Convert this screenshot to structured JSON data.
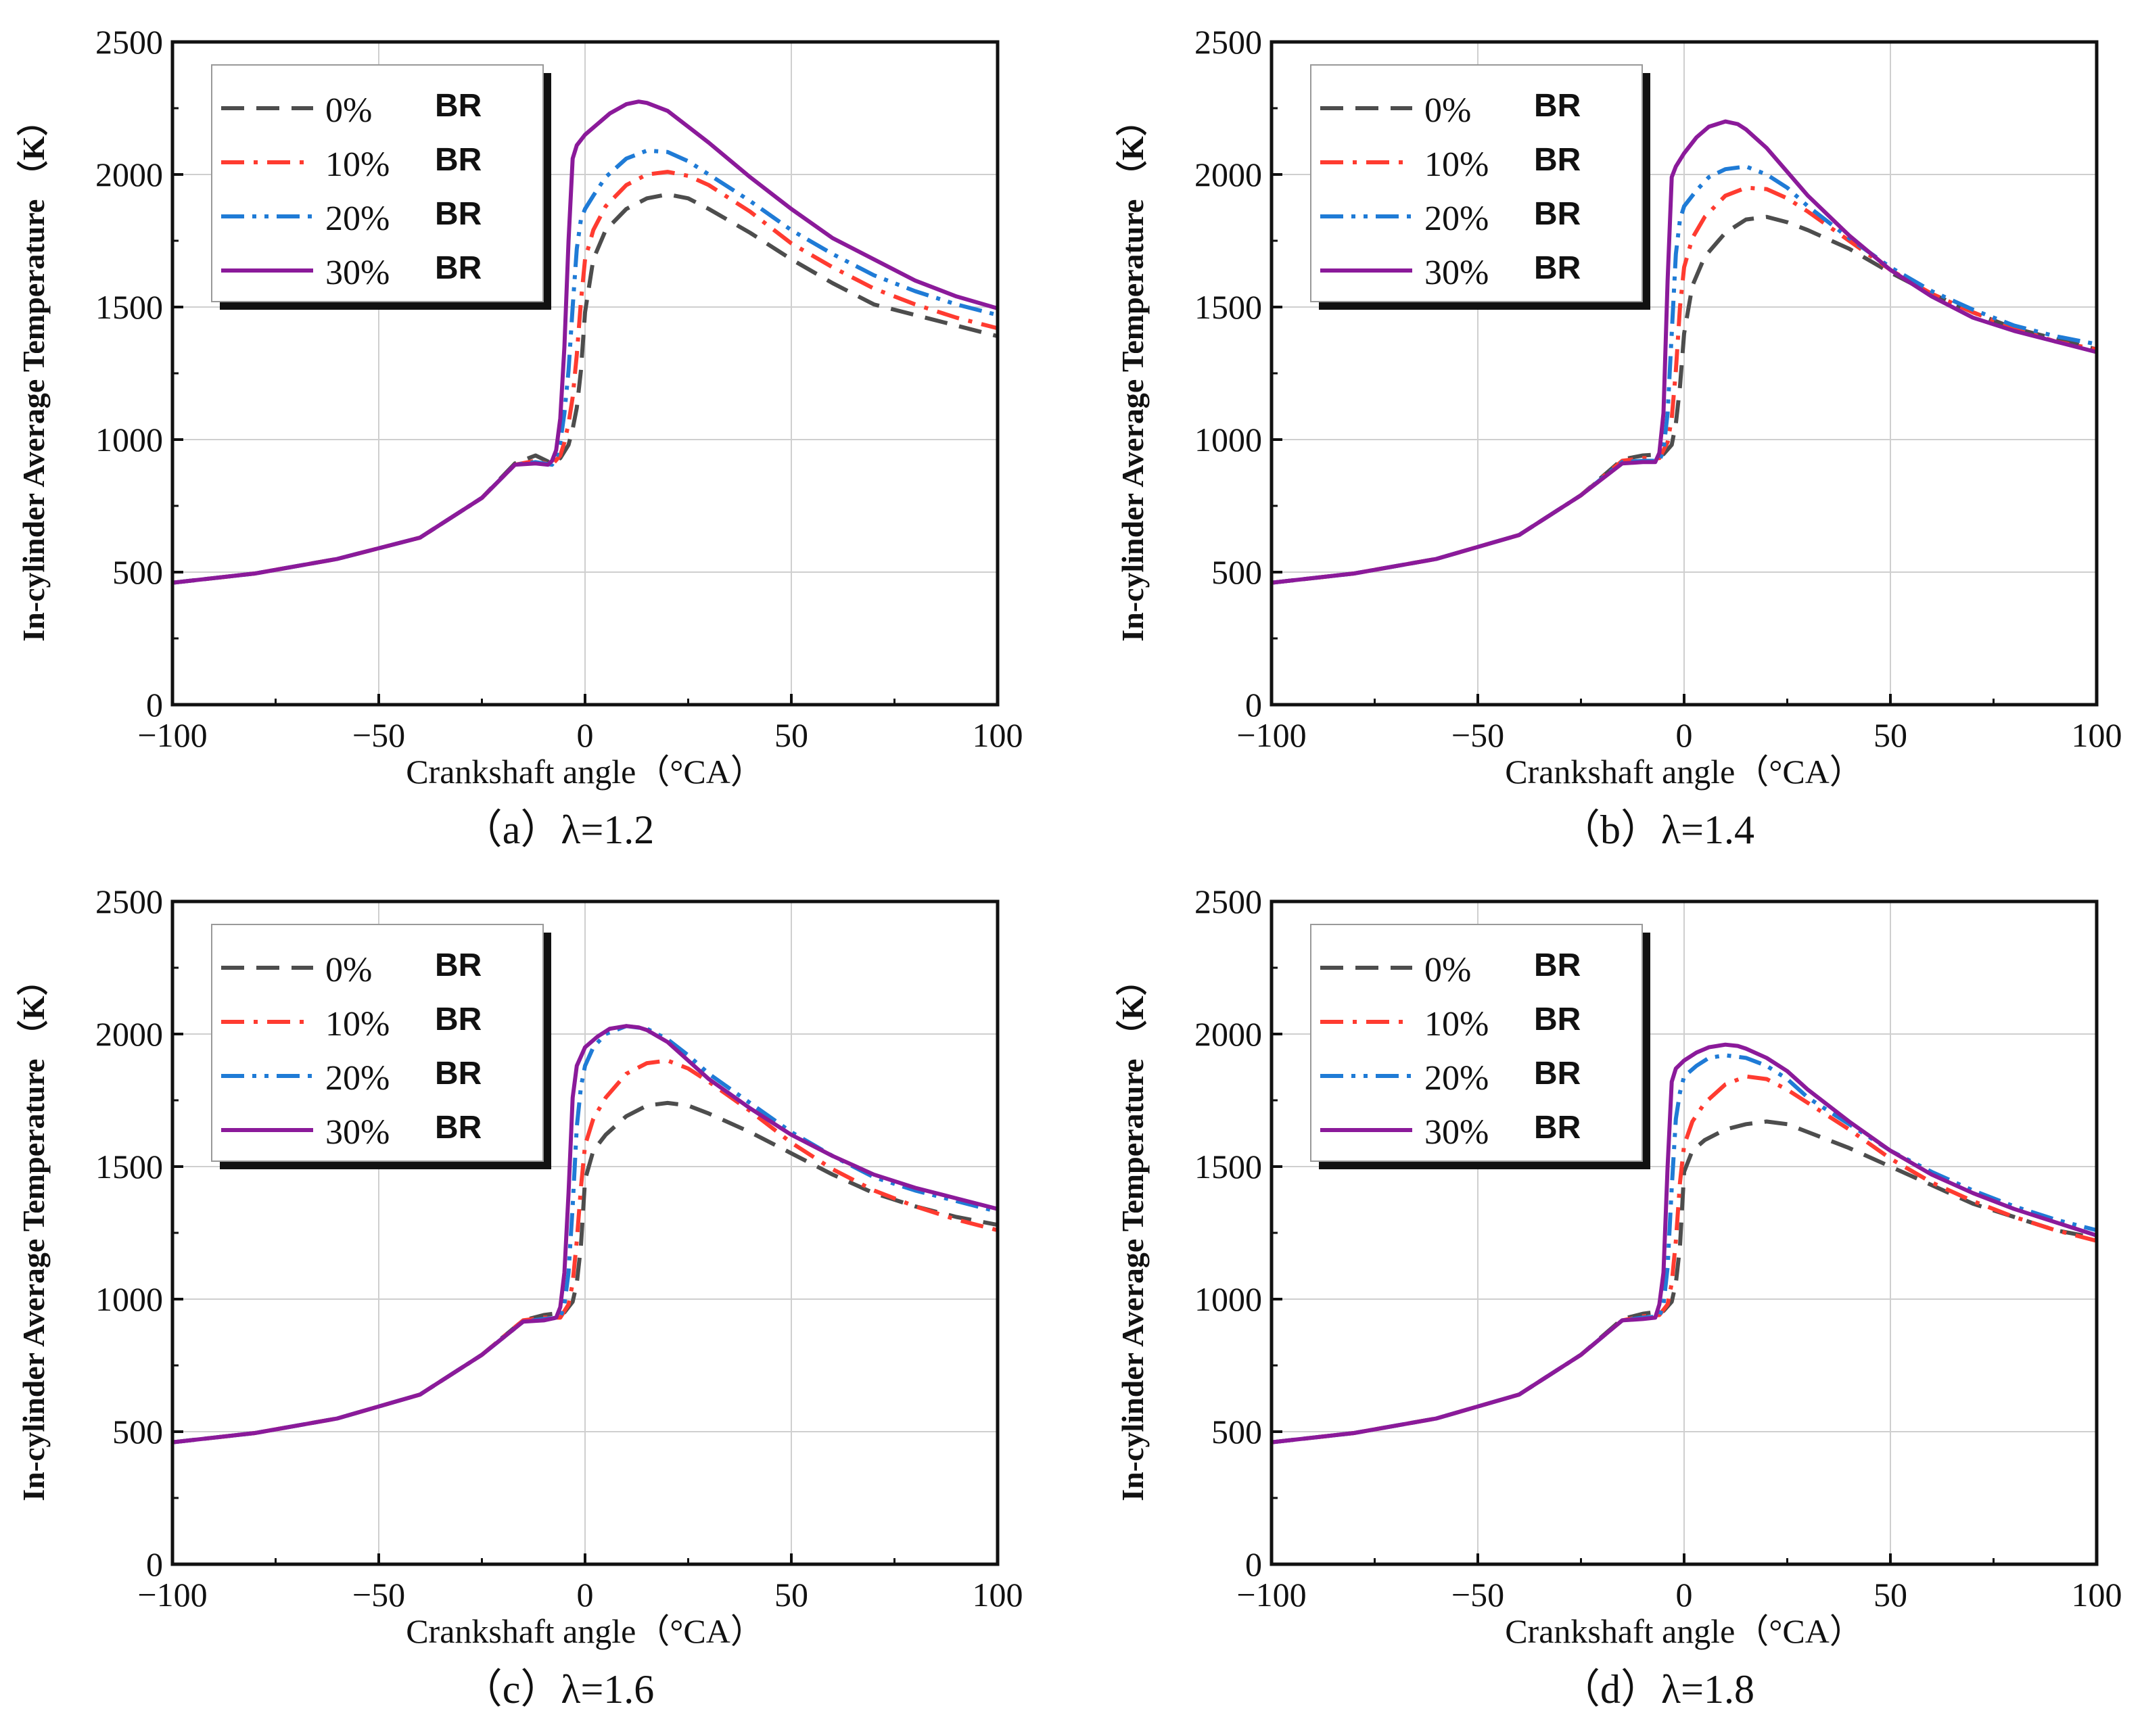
{
  "figure": {
    "legend_suffix": "BR"
  },
  "chart_data": [
    {
      "type": "line",
      "caption": "（a）λ=1.2",
      "xlabel": "Crankshaft angle（°CA）",
      "ylabel": "In-cylinder Average  Temperature （K）",
      "xlim": [
        -100,
        100
      ],
      "ylim": [
        0,
        2500
      ],
      "xticks": [
        -100,
        -50,
        0,
        50,
        100
      ],
      "yticks": [
        0,
        500,
        1000,
        1500,
        2000,
        2500
      ],
      "grid": true,
      "legend_position": "top-left",
      "series": [
        {
          "name": "0%",
          "color": "#4d4d4d",
          "style": "dash",
          "x": [
            -100,
            -80,
            -60,
            -40,
            -25,
            -17,
            -12,
            -8,
            -6,
            -4,
            -3,
            -2,
            -1,
            0,
            2,
            5,
            10,
            15,
            20,
            25,
            30,
            40,
            50,
            60,
            70,
            80,
            90,
            100
          ],
          "y": [
            460,
            495,
            550,
            630,
            780,
            910,
            940,
            910,
            930,
            980,
            1040,
            1120,
            1260,
            1480,
            1680,
            1790,
            1870,
            1910,
            1925,
            1910,
            1870,
            1780,
            1680,
            1590,
            1510,
            1470,
            1430,
            1390
          ]
        },
        {
          "name": "10%",
          "color": "#ff3b30",
          "style": "dashdot",
          "x": [
            -100,
            -80,
            -60,
            -40,
            -25,
            -17,
            -12,
            -8,
            -6,
            -5,
            -4,
            -3,
            -2,
            -1,
            0,
            2,
            5,
            10,
            15,
            20,
            25,
            30,
            40,
            50,
            60,
            70,
            80,
            90,
            100
          ],
          "y": [
            460,
            495,
            550,
            630,
            780,
            905,
            920,
            905,
            940,
            990,
            1060,
            1160,
            1320,
            1520,
            1680,
            1790,
            1880,
            1960,
            2000,
            2010,
            1995,
            1960,
            1860,
            1740,
            1650,
            1570,
            1510,
            1460,
            1420
          ]
        },
        {
          "name": "20%",
          "color": "#1f7bd6",
          "style": "dashdotdot",
          "x": [
            -100,
            -80,
            -60,
            -40,
            -25,
            -17,
            -12,
            -8,
            -7,
            -6,
            -5,
            -4,
            -3,
            -2,
            -1,
            0,
            2,
            5,
            10,
            15,
            20,
            25,
            30,
            40,
            50,
            60,
            70,
            80,
            90,
            100
          ],
          "y": [
            460,
            495,
            550,
            630,
            780,
            905,
            915,
            905,
            930,
            990,
            1100,
            1260,
            1500,
            1720,
            1830,
            1870,
            1920,
            1990,
            2060,
            2090,
            2085,
            2050,
            2000,
            1900,
            1790,
            1700,
            1620,
            1560,
            1510,
            1470
          ]
        },
        {
          "name": "30%",
          "color": "#8b1a9a",
          "style": "solid",
          "x": [
            -100,
            -80,
            -60,
            -40,
            -25,
            -17,
            -12,
            -9,
            -8,
            -7,
            -6,
            -5,
            -4,
            -3,
            -2,
            0,
            3,
            6,
            10,
            13,
            15,
            20,
            25,
            30,
            40,
            50,
            60,
            70,
            80,
            90,
            100
          ],
          "y": [
            460,
            495,
            550,
            630,
            780,
            905,
            910,
            905,
            920,
            960,
            1080,
            1350,
            1750,
            2060,
            2110,
            2150,
            2190,
            2230,
            2265,
            2275,
            2270,
            2240,
            2180,
            2120,
            1990,
            1870,
            1760,
            1680,
            1600,
            1540,
            1495
          ]
        }
      ]
    },
    {
      "type": "line",
      "caption": "（b）λ=1.4",
      "xlabel": "Crankshaft angle（°CA）",
      "ylabel": "In-cylinder Average  Temperature （K）",
      "xlim": [
        -100,
        100
      ],
      "ylim": [
        0,
        2500
      ],
      "xticks": [
        -100,
        -50,
        0,
        50,
        100
      ],
      "yticks": [
        0,
        500,
        1000,
        1500,
        2000,
        2500
      ],
      "grid": true,
      "legend_position": "top-left",
      "series": [
        {
          "name": "0%",
          "color": "#4d4d4d",
          "style": "dash",
          "x": [
            -100,
            -80,
            -60,
            -40,
            -25,
            -15,
            -10,
            -5,
            -3,
            -2,
            -1,
            0,
            2,
            5,
            10,
            15,
            20,
            25,
            30,
            40,
            50,
            60,
            70,
            80,
            90,
            100
          ],
          "y": [
            460,
            495,
            550,
            640,
            790,
            925,
            940,
            945,
            980,
            1060,
            1200,
            1400,
            1580,
            1690,
            1780,
            1830,
            1840,
            1820,
            1790,
            1720,
            1630,
            1550,
            1480,
            1420,
            1380,
            1340
          ]
        },
        {
          "name": "10%",
          "color": "#ff3b30",
          "style": "dashdot",
          "x": [
            -100,
            -80,
            -60,
            -40,
            -25,
            -15,
            -10,
            -6,
            -4,
            -3,
            -2,
            -1,
            0,
            2,
            5,
            10,
            15,
            20,
            25,
            30,
            40,
            50,
            60,
            70,
            80,
            90,
            100
          ],
          "y": [
            460,
            495,
            550,
            640,
            790,
            920,
            930,
            930,
            990,
            1080,
            1260,
            1500,
            1650,
            1760,
            1840,
            1920,
            1950,
            1945,
            1910,
            1860,
            1750,
            1640,
            1550,
            1480,
            1420,
            1370,
            1340
          ]
        },
        {
          "name": "20%",
          "color": "#1f7bd6",
          "style": "dashdotdot",
          "x": [
            -100,
            -80,
            -60,
            -40,
            -25,
            -15,
            -10,
            -6,
            -5,
            -4,
            -3,
            -2,
            -1,
            0,
            3,
            6,
            10,
            15,
            20,
            25,
            30,
            40,
            50,
            60,
            70,
            80,
            90,
            100
          ],
          "y": [
            460,
            495,
            550,
            640,
            790,
            915,
            920,
            920,
            960,
            1100,
            1400,
            1700,
            1830,
            1880,
            1940,
            1990,
            2020,
            2030,
            2000,
            1950,
            1880,
            1760,
            1650,
            1560,
            1490,
            1430,
            1390,
            1360
          ]
        },
        {
          "name": "30%",
          "color": "#8b1a9a",
          "style": "solid",
          "x": [
            -100,
            -80,
            -60,
            -40,
            -25,
            -15,
            -10,
            -7,
            -6,
            -5,
            -4,
            -3,
            -2,
            0,
            3,
            6,
            10,
            13,
            15,
            20,
            25,
            30,
            40,
            50,
            60,
            70,
            80,
            90,
            100
          ],
          "y": [
            460,
            495,
            550,
            640,
            790,
            910,
            915,
            915,
            950,
            1100,
            1600,
            1990,
            2030,
            2080,
            2140,
            2180,
            2200,
            2190,
            2170,
            2100,
            2010,
            1920,
            1770,
            1640,
            1540,
            1460,
            1410,
            1370,
            1330
          ]
        }
      ]
    },
    {
      "type": "line",
      "caption": "（c）λ=1.6",
      "xlabel": "Crankshaft angle（°CA）",
      "ylabel": "In-cylinder Average  Temperature （K）",
      "xlim": [
        -100,
        100
      ],
      "ylim": [
        0,
        2500
      ],
      "xticks": [
        -100,
        -50,
        0,
        50,
        100
      ],
      "yticks": [
        0,
        500,
        1000,
        1500,
        2000,
        2500
      ],
      "grid": true,
      "legend_position": "top-left",
      "series": [
        {
          "name": "0%",
          "color": "#4d4d4d",
          "style": "dash",
          "x": [
            -100,
            -80,
            -60,
            -40,
            -25,
            -15,
            -10,
            -5,
            -3,
            -2,
            -1,
            0,
            2,
            5,
            10,
            15,
            20,
            25,
            30,
            40,
            50,
            60,
            70,
            80,
            90,
            100
          ],
          "y": [
            460,
            495,
            550,
            640,
            790,
            920,
            940,
            950,
            990,
            1060,
            1200,
            1450,
            1560,
            1620,
            1690,
            1730,
            1740,
            1730,
            1700,
            1630,
            1550,
            1470,
            1400,
            1350,
            1310,
            1280
          ]
        },
        {
          "name": "10%",
          "color": "#ff3b30",
          "style": "dashdot",
          "x": [
            -100,
            -80,
            -60,
            -40,
            -25,
            -15,
            -10,
            -6,
            -4,
            -3,
            -2,
            -1,
            0,
            2,
            5,
            10,
            15,
            20,
            25,
            30,
            40,
            50,
            60,
            70,
            80,
            90,
            100
          ],
          "y": [
            460,
            495,
            550,
            640,
            790,
            920,
            930,
            930,
            980,
            1060,
            1220,
            1420,
            1580,
            1680,
            1760,
            1850,
            1890,
            1900,
            1870,
            1820,
            1710,
            1590,
            1490,
            1410,
            1350,
            1300,
            1260
          ]
        },
        {
          "name": "20%",
          "color": "#1f7bd6",
          "style": "dashdotdot",
          "x": [
            -100,
            -80,
            -60,
            -40,
            -25,
            -15,
            -10,
            -6,
            -5,
            -4,
            -3,
            -2,
            -1,
            0,
            2,
            5,
            10,
            15,
            20,
            25,
            30,
            40,
            50,
            60,
            70,
            80,
            90,
            100
          ],
          "y": [
            460,
            495,
            550,
            640,
            790,
            915,
            925,
            930,
            980,
            1100,
            1350,
            1650,
            1800,
            1880,
            1950,
            2000,
            2030,
            2020,
            1980,
            1920,
            1850,
            1740,
            1630,
            1540,
            1460,
            1410,
            1370,
            1330
          ]
        },
        {
          "name": "30%",
          "color": "#8b1a9a",
          "style": "solid",
          "x": [
            -100,
            -80,
            -60,
            -40,
            -25,
            -15,
            -10,
            -7,
            -6,
            -5,
            -4,
            -3,
            -2,
            0,
            3,
            6,
            10,
            13,
            15,
            20,
            25,
            30,
            40,
            50,
            60,
            70,
            80,
            90,
            100
          ],
          "y": [
            460,
            495,
            550,
            640,
            790,
            915,
            920,
            930,
            970,
            1100,
            1400,
            1760,
            1880,
            1950,
            1990,
            2020,
            2030,
            2025,
            2015,
            1970,
            1900,
            1830,
            1720,
            1620,
            1540,
            1470,
            1420,
            1380,
            1340
          ]
        }
      ]
    },
    {
      "type": "line",
      "caption": "（d）λ=1.8",
      "xlabel": "Crankshaft angle（°CA）",
      "ylabel": "In-cylinder Average  Temperature （K）",
      "xlim": [
        -100,
        100
      ],
      "ylim": [
        0,
        2500
      ],
      "xticks": [
        -100,
        -50,
        0,
        50,
        100
      ],
      "yticks": [
        0,
        500,
        1000,
        1500,
        2000,
        2500
      ],
      "grid": true,
      "legend_position": "top-left",
      "series": [
        {
          "name": "0%",
          "color": "#4d4d4d",
          "style": "dash",
          "x": [
            -100,
            -80,
            -60,
            -40,
            -25,
            -15,
            -10,
            -5,
            -3,
            -2,
            -1,
            0,
            2,
            5,
            10,
            15,
            20,
            25,
            30,
            40,
            50,
            60,
            70,
            80,
            90,
            100
          ],
          "y": [
            460,
            495,
            550,
            640,
            790,
            925,
            945,
            955,
            990,
            1060,
            1200,
            1480,
            1560,
            1600,
            1640,
            1660,
            1670,
            1660,
            1630,
            1570,
            1500,
            1430,
            1360,
            1310,
            1260,
            1230
          ]
        },
        {
          "name": "10%",
          "color": "#ff3b30",
          "style": "dashdot",
          "x": [
            -100,
            -80,
            -60,
            -40,
            -25,
            -15,
            -10,
            -6,
            -4,
            -3,
            -2,
            -1,
            0,
            2,
            5,
            10,
            15,
            20,
            25,
            30,
            40,
            50,
            60,
            70,
            80,
            90,
            100
          ],
          "y": [
            460,
            495,
            550,
            640,
            790,
            920,
            935,
            940,
            980,
            1060,
            1220,
            1440,
            1580,
            1670,
            1740,
            1810,
            1840,
            1830,
            1790,
            1740,
            1640,
            1530,
            1440,
            1370,
            1310,
            1260,
            1220
          ]
        },
        {
          "name": "20%",
          "color": "#1f7bd6",
          "style": "dashdotdot",
          "x": [
            -100,
            -80,
            -60,
            -40,
            -25,
            -15,
            -10,
            -6,
            -5,
            -4,
            -3,
            -2,
            -1,
            0,
            3,
            6,
            10,
            15,
            20,
            25,
            30,
            40,
            50,
            60,
            70,
            80,
            90,
            100
          ],
          "y": [
            460,
            495,
            550,
            640,
            790,
            920,
            930,
            935,
            980,
            1120,
            1420,
            1680,
            1780,
            1840,
            1880,
            1910,
            1920,
            1910,
            1880,
            1830,
            1760,
            1660,
            1560,
            1480,
            1410,
            1350,
            1300,
            1260
          ]
        },
        {
          "name": "30%",
          "color": "#8b1a9a",
          "style": "solid",
          "x": [
            -100,
            -80,
            -60,
            -40,
            -25,
            -15,
            -10,
            -7,
            -6,
            -5,
            -4,
            -3,
            -2,
            0,
            3,
            6,
            10,
            13,
            15,
            20,
            25,
            30,
            40,
            50,
            60,
            70,
            80,
            90,
            100
          ],
          "y": [
            460,
            495,
            550,
            640,
            790,
            920,
            925,
            930,
            980,
            1100,
            1500,
            1820,
            1870,
            1900,
            1930,
            1950,
            1960,
            1955,
            1945,
            1910,
            1860,
            1790,
            1670,
            1560,
            1470,
            1400,
            1340,
            1290,
            1240
          ]
        }
      ]
    }
  ]
}
